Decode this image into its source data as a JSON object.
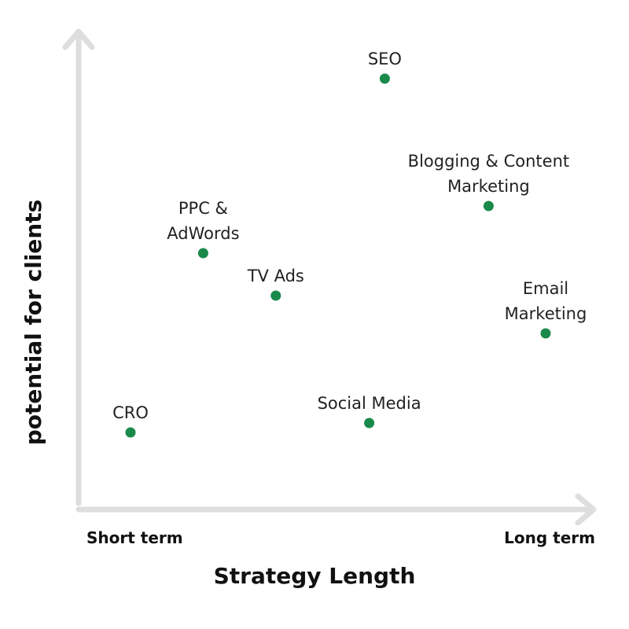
{
  "chart_data": {
    "type": "scatter",
    "title": "",
    "xlabel": "Strategy Length",
    "ylabel": "potential for clients",
    "x_tick_labels": {
      "start": "Short term",
      "end": "Long term"
    },
    "xlim": [
      0,
      100
    ],
    "ylim": [
      0,
      100
    ],
    "grid": false,
    "legend": "none",
    "point_color": "#1a8a4a",
    "axis_color": "#dedede",
    "points": [
      {
        "label": [
          "SEO"
        ],
        "x": 59,
        "y": 90
      },
      {
        "label": [
          "Blogging & Content",
          "Marketing"
        ],
        "x": 79,
        "y": 63
      },
      {
        "label": [
          "PPC &",
          "AdWords"
        ],
        "x": 24,
        "y": 53
      },
      {
        "label": [
          "TV Ads"
        ],
        "x": 38,
        "y": 44
      },
      {
        "label": [
          "Email",
          "Marketing"
        ],
        "x": 90,
        "y": 36
      },
      {
        "label": [
          "Social Media"
        ],
        "x": 56,
        "y": 17
      },
      {
        "label": [
          "CRO"
        ],
        "x": 10,
        "y": 15
      }
    ]
  }
}
